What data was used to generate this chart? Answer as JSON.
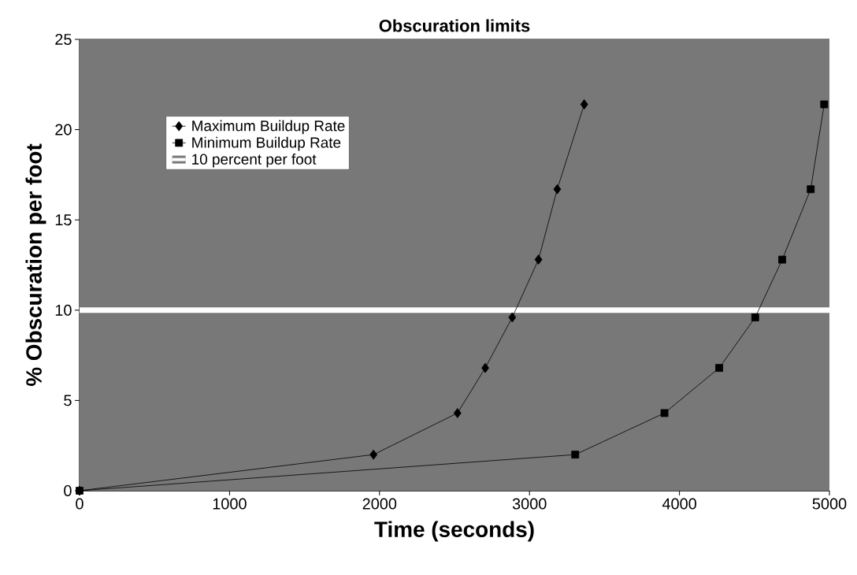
{
  "chart_data": {
    "type": "line",
    "title": "Obscuration limits",
    "xlabel": "Time (seconds)",
    "ylabel": "% Obscuration per foot",
    "xlim": [
      0,
      5000
    ],
    "xticks": [
      0,
      1000,
      2000,
      3000,
      4000,
      5000
    ],
    "ylim": [
      0,
      25
    ],
    "yticks": [
      0,
      5,
      10,
      15,
      20,
      25
    ],
    "grid": "y",
    "legend": "top left",
    "line_style": "solid",
    "series": [
      {
        "name": "Maximum Buildup Rate",
        "color": "#000000",
        "marker": "diamond",
        "x": [
          0,
          1960,
          2520,
          2705,
          2885,
          3060,
          3185,
          3365
        ],
        "values": [
          0,
          2.0,
          4.3,
          6.8,
          9.6,
          12.8,
          16.7,
          21.4
        ]
      },
      {
        "name": "Minimum Buildup Rate",
        "color": "#000000",
        "marker": "square",
        "x": [
          0,
          3305,
          3900,
          4265,
          4505,
          4685,
          4875,
          4965
        ],
        "values": [
          0,
          2.0,
          4.3,
          6.8,
          9.6,
          12.8,
          16.7,
          21.4
        ]
      }
    ],
    "ref_lines": [
      {
        "axis": "y",
        "value": 10,
        "label": "10 percent per foot",
        "color": "#ffffff"
      }
    ]
  }
}
